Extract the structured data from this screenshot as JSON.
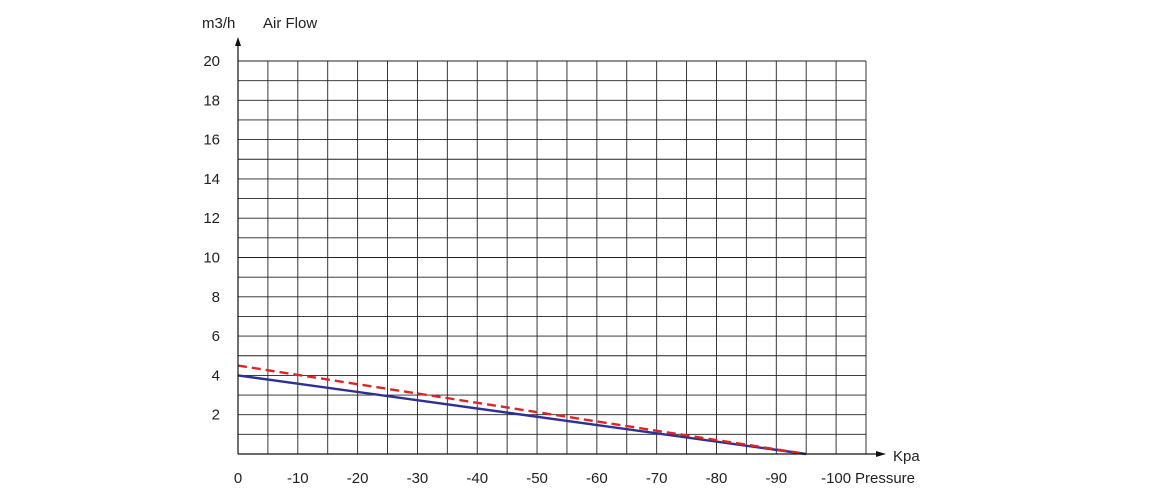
{
  "chart_data": {
    "type": "line",
    "title": "",
    "ylabel": "Air Flow",
    "yunit": "m3/h",
    "xlabel": "Pressure",
    "xunit": "Kpa",
    "xlim": [
      0,
      -105
    ],
    "ylim": [
      0,
      20
    ],
    "x_ticks": [
      "0",
      "-10",
      "-20",
      "-30",
      "-40",
      "-50",
      "-60",
      "-70",
      "-80",
      "-90",
      "-100"
    ],
    "y_ticks": [
      "2",
      "4",
      "6",
      "8",
      "10",
      "12",
      "14",
      "16",
      "18",
      "20"
    ],
    "grid": true,
    "legend": "none",
    "series": [
      {
        "color": "#2e3192",
        "style": "solid",
        "x": [
          0,
          -95
        ],
        "y": [
          4.0,
          0
        ]
      },
      {
        "color": "#e02424",
        "style": "dashed",
        "x": [
          0,
          -95
        ],
        "y": [
          4.5,
          0
        ]
      }
    ]
  }
}
